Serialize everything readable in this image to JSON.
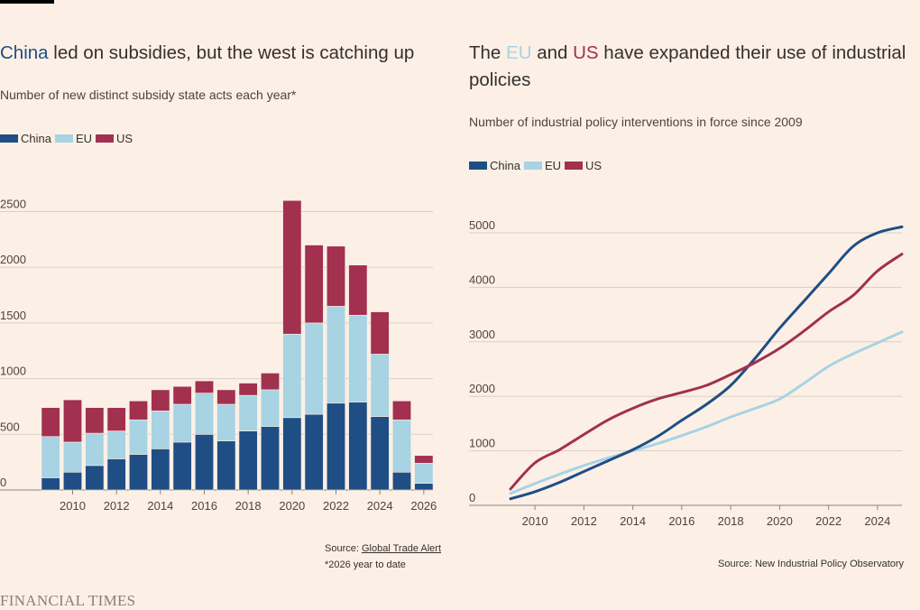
{
  "colors": {
    "china": "#1f4e85",
    "eu": "#a7d3e3",
    "us": "#a2304f",
    "background": "#fcf0e6",
    "grid": "#d9cfc6"
  },
  "brand": "FINANCIAL TIMES",
  "left": {
    "title": {
      "highlight": "China",
      "rest": " led on subsidies, but the west is catching up"
    },
    "subtitle": "Number of new distinct subsidy state acts each year*",
    "legend": [
      "China",
      "EU",
      "US"
    ],
    "source_prefix": "Source: ",
    "source_link": "Global Trade Alert",
    "footnote": "*2026 year to date"
  },
  "right": {
    "title": {
      "p1": "The ",
      "eu": "EU",
      "p2": " and ",
      "us": "US",
      "p3": " have expanded their use of industrial policies"
    },
    "subtitle": "Number of industrial policy interventions in force since 2009",
    "legend": [
      "China",
      "EU",
      "US"
    ],
    "source": "Source: New Industrial Policy Observatory"
  },
  "chart_data": [
    {
      "type": "bar",
      "stacked": true,
      "categories": [
        "2009",
        "2010",
        "2011",
        "2012",
        "2013",
        "2014",
        "2015",
        "2016",
        "2017",
        "2018",
        "2019",
        "2020",
        "2021",
        "2022",
        "2023",
        "2024",
        "2025",
        "2026"
      ],
      "series": [
        {
          "name": "China",
          "values": [
            110,
            160,
            220,
            280,
            320,
            370,
            430,
            500,
            440,
            530,
            570,
            650,
            680,
            780,
            790,
            660,
            160,
            60
          ]
        },
        {
          "name": "EU",
          "values": [
            370,
            270,
            290,
            250,
            310,
            340,
            340,
            370,
            330,
            320,
            330,
            750,
            820,
            870,
            780,
            560,
            470,
            180
          ]
        },
        {
          "name": "US",
          "values": [
            260,
            380,
            230,
            210,
            170,
            190,
            160,
            110,
            130,
            110,
            150,
            1200,
            700,
            540,
            450,
            380,
            170,
            70
          ]
        }
      ],
      "xticks": [
        "2010",
        "2012",
        "2014",
        "2016",
        "2018",
        "2020",
        "2022",
        "2024",
        "2026"
      ],
      "yticks": [
        0,
        500,
        1000,
        1500,
        2000,
        2500
      ],
      "ylim": [
        0,
        2650
      ],
      "grid": true
    },
    {
      "type": "line",
      "x": [
        2009,
        2010,
        2011,
        2012,
        2013,
        2014,
        2015,
        2016,
        2017,
        2018,
        2019,
        2020,
        2021,
        2022,
        2023,
        2024,
        2025
      ],
      "series": [
        {
          "name": "China",
          "values": [
            120,
            250,
            420,
            620,
            820,
            1020,
            1260,
            1560,
            1850,
            2200,
            2700,
            3250,
            3750,
            4250,
            4750,
            5000,
            5110
          ]
        },
        {
          "name": "EU",
          "values": [
            220,
            400,
            570,
            730,
            870,
            1000,
            1130,
            1280,
            1440,
            1620,
            1780,
            1950,
            2240,
            2550,
            2780,
            2980,
            3180
          ]
        },
        {
          "name": "US",
          "values": [
            300,
            780,
            1020,
            1300,
            1570,
            1780,
            1950,
            2070,
            2200,
            2400,
            2620,
            2880,
            3200,
            3550,
            3850,
            4300,
            4610
          ]
        }
      ],
      "xticks": [
        "2010",
        "2012",
        "2014",
        "2016",
        "2018",
        "2020",
        "2022",
        "2024"
      ],
      "yticks": [
        0,
        1000,
        2000,
        3000,
        4000,
        5000
      ],
      "xlim": [
        2009,
        2025
      ],
      "ylim": [
        0,
        5200
      ],
      "grid": true
    }
  ]
}
